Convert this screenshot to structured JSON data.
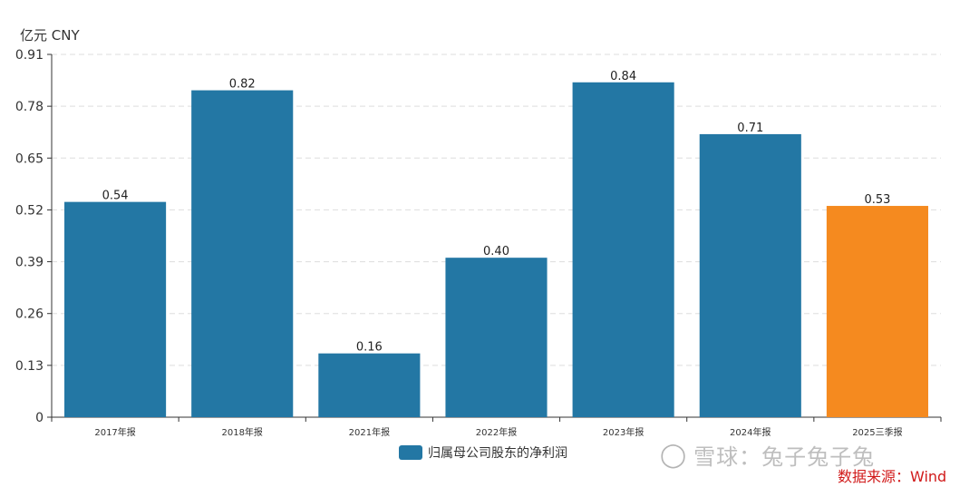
{
  "unit_label": "亿元  CNY",
  "legend": {
    "label": "归属母公司股东的净利润",
    "color": "#2377a4"
  },
  "watermark": {
    "text": "雪球：兔子兔子兔",
    "icon": "chat-bubble-icon"
  },
  "source": "数据来源：Wind",
  "colors": {
    "bar": "#2377a4",
    "highlight": "#f58a1f",
    "grid": "#dddddd",
    "axis": "#333333"
  },
  "chart_data": {
    "type": "bar",
    "categories": [
      "2017年报",
      "2018年报",
      "2021年报",
      "2022年报",
      "2023年报",
      "2024年报",
      "2025三季报"
    ],
    "series": [
      {
        "name": "归属母公司股东的净利润",
        "values": [
          0.54,
          0.82,
          0.16,
          0.4,
          0.84,
          0.71,
          0.53
        ]
      }
    ],
    "data_labels": [
      "0.54",
      "0.82",
      "0.16",
      "0.40",
      "0.84",
      "0.71",
      "0.53"
    ],
    "highlight_index": 6,
    "ylim": [
      0,
      0.91
    ],
    "yticks": [
      0,
      0.13,
      0.26,
      0.39,
      0.52,
      0.65,
      0.78,
      0.91
    ],
    "ytick_labels": [
      "0",
      "0.13",
      "0.26",
      "0.39",
      "0.52",
      "0.65",
      "0.78",
      "0.91"
    ],
    "grid": true,
    "legend_position": "bottom"
  }
}
